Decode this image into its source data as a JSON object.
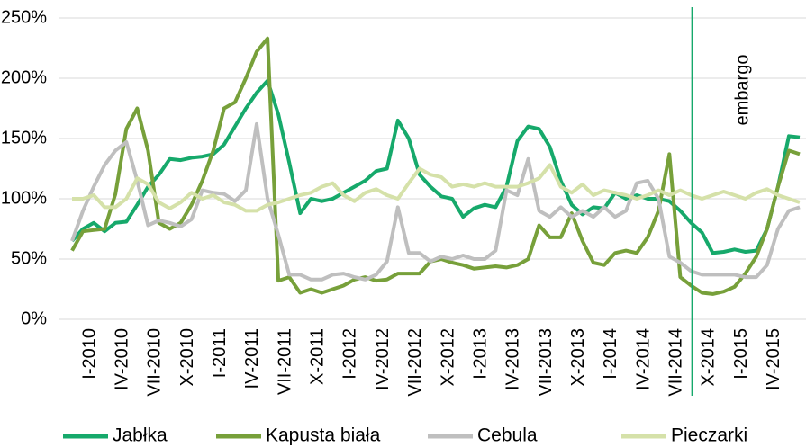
{
  "chart_data": {
    "type": "line",
    "categories": [
      "I-2010",
      null,
      null,
      "IV-2010",
      null,
      null,
      "VII-2010",
      null,
      null,
      "X-2010",
      null,
      null,
      "I-2011",
      null,
      null,
      "IV-2011",
      null,
      null,
      "VII-2011",
      null,
      null,
      "X-2011",
      null,
      null,
      "I-2012",
      null,
      null,
      "IV-2012",
      null,
      null,
      "VII-2012",
      null,
      null,
      "X-2012",
      null,
      null,
      "I-2013",
      null,
      null,
      "IV-2013",
      null,
      null,
      "VII-2013",
      null,
      null,
      "X-2013",
      null,
      null,
      "I-2014",
      null,
      null,
      "IV-2014",
      null,
      null,
      "VII-2014",
      null,
      null,
      "X-2014",
      null,
      null,
      "I-2015",
      null,
      null,
      "IV-2015",
      null,
      null,
      null,
      null
    ],
    "series": [
      {
        "name": "Jabłka",
        "color": "#16a96b",
        "values": [
          65,
          75,
          80,
          73,
          80,
          81,
          95,
          110,
          120,
          133,
          132,
          134,
          135,
          137,
          145,
          160,
          175,
          188,
          198,
          170,
          130,
          88,
          100,
          98,
          100,
          105,
          110,
          115,
          123,
          125,
          165,
          150,
          120,
          110,
          102,
          100,
          85,
          92,
          95,
          93,
          110,
          148,
          160,
          158,
          143,
          115,
          95,
          87,
          93,
          92,
          105,
          100,
          103,
          100,
          100,
          98,
          90,
          80,
          72,
          55,
          56,
          58,
          56,
          57,
          75,
          110,
          152,
          151
        ]
      },
      {
        "name": "Kapusta biała",
        "color": "#77a03a",
        "values": [
          57,
          73,
          74,
          75,
          104,
          158,
          175,
          140,
          80,
          75,
          80,
          95,
          115,
          140,
          175,
          180,
          200,
          222,
          233,
          32,
          35,
          22,
          25,
          22,
          25,
          28,
          33,
          35,
          32,
          33,
          38,
          38,
          38,
          48,
          50,
          47,
          45,
          42,
          43,
          44,
          43,
          45,
          50,
          78,
          68,
          68,
          88,
          65,
          47,
          45,
          55,
          57,
          55,
          68,
          90,
          137,
          35,
          28,
          22,
          21,
          23,
          27,
          38,
          52,
          75,
          110,
          140,
          137
        ]
      },
      {
        "name": "Cebula",
        "color": "#bfbfbf",
        "values": [
          65,
          90,
          110,
          128,
          140,
          147,
          115,
          78,
          82,
          80,
          77,
          83,
          107,
          105,
          104,
          98,
          107,
          162,
          100,
          70,
          37,
          37,
          33,
          33,
          37,
          38,
          35,
          33,
          37,
          48,
          93,
          55,
          55,
          48,
          52,
          50,
          53,
          50,
          50,
          57,
          107,
          103,
          133,
          90,
          85,
          93,
          85,
          90,
          85,
          93,
          85,
          90,
          113,
          115,
          100,
          52,
          47,
          40,
          37,
          37,
          37,
          37,
          35,
          35,
          45,
          75,
          90,
          93
        ]
      },
      {
        "name": "Pieczarki",
        "color": "#d5e1a9",
        "values": [
          100,
          100,
          103,
          93,
          93,
          100,
          117,
          112,
          97,
          92,
          97,
          105,
          100,
          103,
          97,
          95,
          90,
          90,
          95,
          97,
          100,
          103,
          105,
          110,
          113,
          103,
          98,
          105,
          108,
          103,
          100,
          113,
          125,
          120,
          118,
          110,
          112,
          110,
          113,
          110,
          110,
          110,
          113,
          117,
          128,
          110,
          105,
          112,
          103,
          107,
          105,
          103,
          100,
          103,
          107,
          103,
          107,
          103,
          100,
          103,
          106,
          103,
          100,
          105,
          108,
          103,
          100,
          97
        ]
      }
    ],
    "annotation": "embargo",
    "ylim": [
      0,
      250
    ],
    "yticks": [
      {
        "value": 0,
        "label": "0%"
      },
      {
        "value": 50,
        "label": "50%"
      },
      {
        "value": 100,
        "label": "100%"
      },
      {
        "value": 150,
        "label": "150%"
      },
      {
        "value": 200,
        "label": "200%"
      },
      {
        "value": 250,
        "label": "250%"
      }
    ],
    "grid": true,
    "legend": "bottom"
  }
}
